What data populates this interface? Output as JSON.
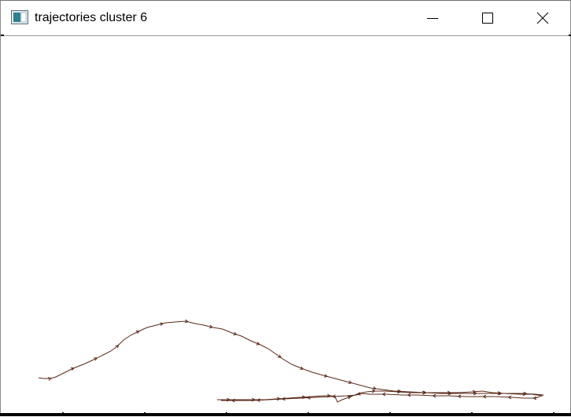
{
  "window": {
    "title": "trajectories cluster 6",
    "controls": {
      "minimize": "minimize",
      "maximize": "maximize",
      "close": "close"
    }
  },
  "plot": {
    "trajectory_color": "#5a2a1a"
  }
}
